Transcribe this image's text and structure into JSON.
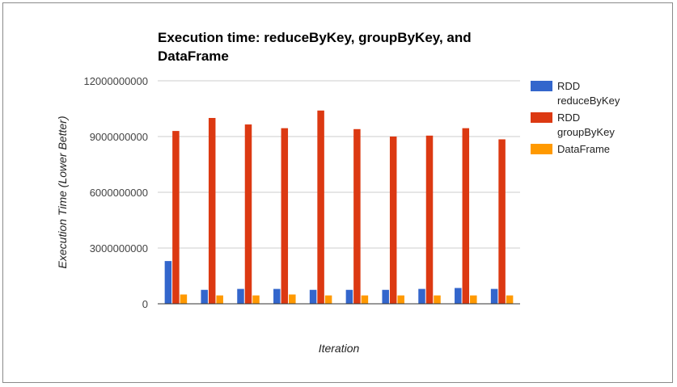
{
  "chart_data": {
    "type": "bar",
    "title": "Execution time: reduceByKey, groupByKey, and DataFrame",
    "xlabel": "Iteration",
    "ylabel": "Execution Time (Lower Better)",
    "ylim": [
      0,
      12000000000
    ],
    "yticks": [
      "0",
      "3000000000",
      "6000000000",
      "9000000000",
      "12000000000"
    ],
    "ytick_values": [
      0,
      3000000000,
      6000000000,
      9000000000,
      12000000000
    ],
    "categories": [
      "",
      "",
      "",
      "",
      "",
      "",
      "",
      "",
      "",
      ""
    ],
    "grid": true,
    "legend_position": "right",
    "series": [
      {
        "name": "RDD reduceByKey",
        "legend_lines": [
          "RDD",
          "reduceByKey"
        ],
        "color": "#3366cc",
        "values": [
          2300000000,
          750000000,
          800000000,
          800000000,
          750000000,
          750000000,
          750000000,
          800000000,
          850000000,
          800000000
        ]
      },
      {
        "name": "RDD groupByKey",
        "legend_lines": [
          "RDD",
          "groupByKey"
        ],
        "color": "#dc3912",
        "values": [
          9300000000,
          10000000000,
          9650000000,
          9450000000,
          10400000000,
          9400000000,
          9000000000,
          9050000000,
          9450000000,
          8850000000
        ]
      },
      {
        "name": "DataFrame",
        "legend_lines": [
          "DataFrame"
        ],
        "color": "#ff9900",
        "values": [
          500000000,
          450000000,
          450000000,
          500000000,
          450000000,
          450000000,
          450000000,
          450000000,
          450000000,
          450000000
        ]
      }
    ]
  }
}
